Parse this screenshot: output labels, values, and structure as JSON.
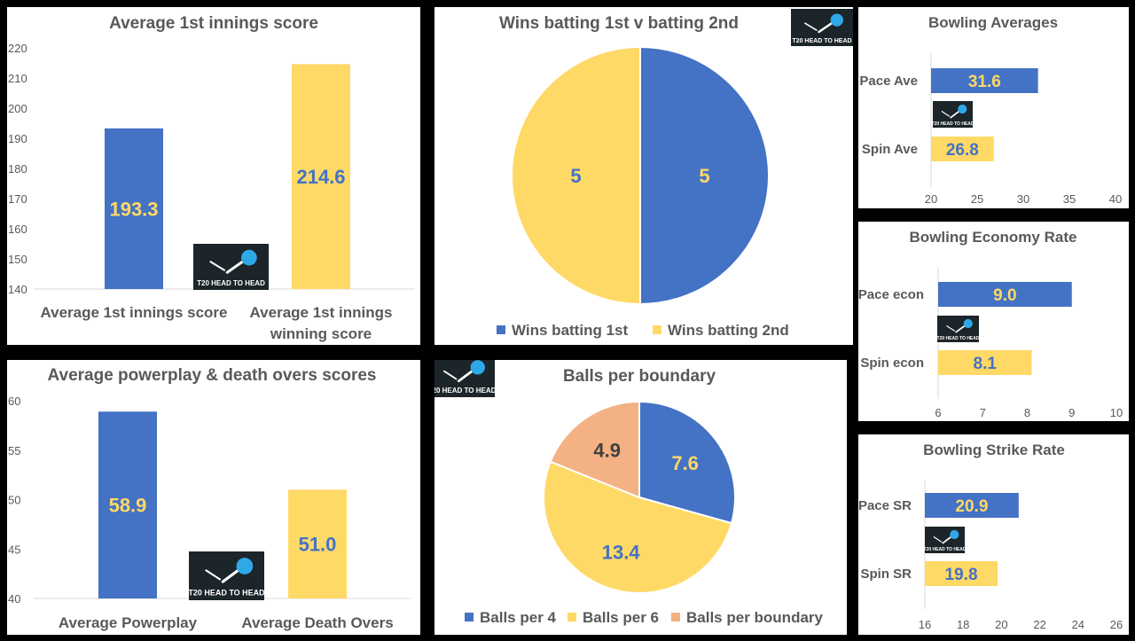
{
  "colors": {
    "blue": "#4472C4",
    "yellow": "#FFD966",
    "peach": "#F4B183",
    "text": "#595959",
    "axis": "#D9D9D9"
  },
  "logo": {
    "text": "T20 HEAD TO HEAD"
  },
  "chart_data": [
    {
      "id": "first-innings",
      "type": "bar",
      "title": "Average 1st innings  score",
      "categories": [
        [
          "Average 1st innings score"
        ],
        [
          "Average 1st innings",
          "winning score"
        ]
      ],
      "values": [
        193.3,
        214.6
      ],
      "labels": [
        "193.3",
        "214.6"
      ],
      "ylim": [
        140,
        220
      ],
      "yticks": [
        140,
        150,
        160,
        170,
        180,
        190,
        200,
        210,
        220
      ]
    },
    {
      "id": "wins-batting",
      "type": "pie",
      "title": "Wins batting 1st v batting 2nd",
      "slices": [
        {
          "name": "Wins batting 1st",
          "value": 5,
          "label": "5"
        },
        {
          "name": "Wins batting 2nd",
          "value": 5,
          "label": "5"
        }
      ]
    },
    {
      "id": "powerplay-death",
      "type": "bar",
      "title": "Average powerplay & death overs scores",
      "categories": [
        [
          "Average Powerplay"
        ],
        [
          "Average Death Overs"
        ]
      ],
      "values": [
        58.9,
        51.0
      ],
      "labels": [
        "58.9",
        "51.0"
      ],
      "ylim": [
        40,
        60
      ],
      "yticks": [
        40,
        45,
        50,
        55,
        60
      ]
    },
    {
      "id": "balls-per-boundary",
      "type": "pie",
      "title": "Balls per boundary",
      "slices": [
        {
          "name": "Balls per 4",
          "value": 7.6,
          "label": "7.6"
        },
        {
          "name": "Balls per 6",
          "value": 13.4,
          "label": "13.4"
        },
        {
          "name": "Balls per boundary",
          "value": 4.9,
          "label": "4.9"
        }
      ]
    },
    {
      "id": "bowling-averages",
      "type": "bar",
      "orientation": "horizontal",
      "title": "Bowling Averages",
      "categories": [
        "Pace Ave",
        "Spin Ave"
      ],
      "values": [
        31.6,
        26.8
      ],
      "labels": [
        "31.6",
        "26.8"
      ],
      "xlim": [
        20,
        40
      ],
      "xticks": [
        20,
        25,
        30,
        35,
        40
      ]
    },
    {
      "id": "bowling-economy",
      "type": "bar",
      "orientation": "horizontal",
      "title": "Bowling Economy Rate",
      "categories": [
        "Pace econ",
        "Spin econ"
      ],
      "values": [
        9.0,
        8.1
      ],
      "labels": [
        "9.0",
        "8.1"
      ],
      "xlim": [
        6,
        10
      ],
      "xticks": [
        6,
        7,
        8,
        9,
        10
      ]
    },
    {
      "id": "bowling-strike-rate",
      "type": "bar",
      "orientation": "horizontal",
      "title": "Bowling Strike Rate",
      "categories": [
        "Pace SR",
        "Spin SR"
      ],
      "values": [
        20.9,
        19.8
      ],
      "labels": [
        "20.9",
        "19.8"
      ],
      "xlim": [
        16,
        26
      ],
      "xticks": [
        16,
        18,
        20,
        22,
        24,
        26
      ]
    }
  ]
}
